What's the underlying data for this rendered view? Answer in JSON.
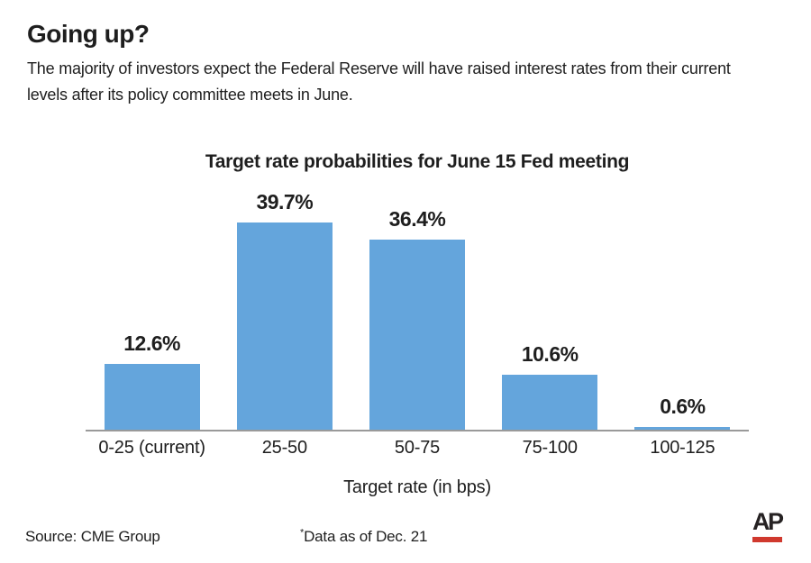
{
  "page": {
    "title": "Going up?",
    "subtitle_lines": [
      "The majority of investors expect the Federal Reserve will have raised interest rates from their current",
      "levels after its policy committee meets in June."
    ]
  },
  "chart_data": {
    "type": "bar",
    "title": "Target rate probabilities for June 15 Fed meeting",
    "categories": [
      "0-25 (current)",
      "25-50",
      "50-75",
      "75-100",
      "100-125"
    ],
    "values": [
      12.6,
      39.7,
      36.4,
      10.6,
      0.6
    ],
    "value_labels": [
      "12.6%",
      "39.7%",
      "36.4%",
      "10.6%",
      "0.6%"
    ],
    "xlabel": "Target rate (in bps)",
    "ylabel": "",
    "ylim": [
      0,
      40
    ],
    "grid": false,
    "legend_position": "none",
    "bar_color": "#64a5dc",
    "axis_color": "#9a9a9a"
  },
  "footer": {
    "source": "Source: CME Group",
    "note_star": "*",
    "note_text": "Data as of Dec. 21",
    "logo_text": "AP",
    "logo_bar_color": "#d0392e"
  },
  "colors": {
    "text": "#1e1e1e",
    "background": "#ffffff"
  }
}
